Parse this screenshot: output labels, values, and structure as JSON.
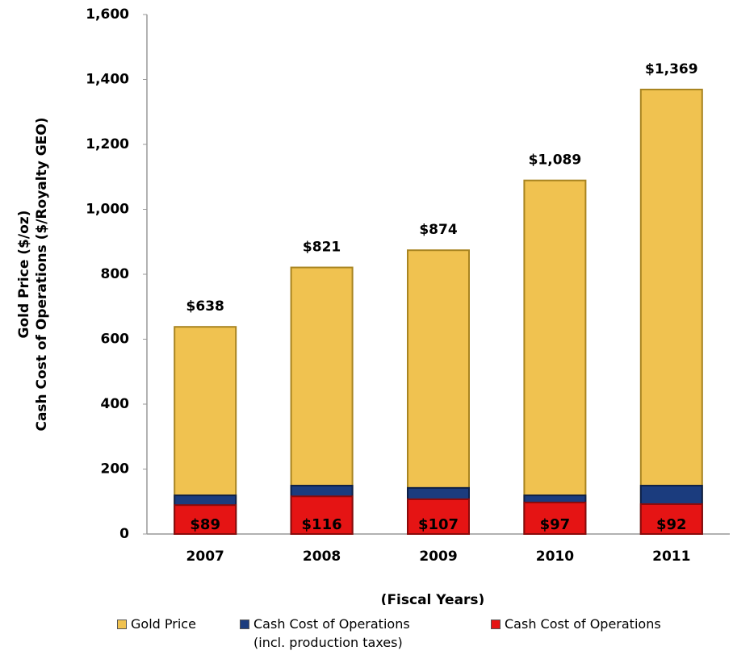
{
  "chart_data": {
    "type": "bar",
    "ylabel": [
      "Gold Price ($/oz)",
      "Cash Cost of Operations ($/Royalty GEO)"
    ],
    "xlabel": "(Fiscal Years)",
    "categories": [
      "2007",
      "2008",
      "2009",
      "2010",
      "2011"
    ],
    "overlay": true,
    "series": [
      {
        "name": "Gold Price",
        "color": "#f0c250",
        "values": [
          638,
          821,
          874,
          1089,
          1369
        ],
        "value_labels": [
          "$638",
          "$821",
          "$874",
          "$1,089",
          "$1,369"
        ]
      },
      {
        "name": "Cash Cost of Operations (incl. production taxes)",
        "color": "#1b3c7e",
        "values": [
          119,
          149,
          142,
          119,
          149
        ]
      },
      {
        "name": "Cash Cost of Operations",
        "color": "#e51414",
        "values": [
          89,
          116,
          107,
          97,
          92
        ],
        "value_labels": [
          "$89",
          "$116",
          "$107",
          "$97",
          "$92"
        ]
      }
    ],
    "ylim": [
      0,
      1600
    ],
    "yticks": [
      0,
      200,
      400,
      600,
      800,
      {
        "value": 1000,
        "label": "1,000"
      },
      {
        "value": 1200,
        "label": "1,200"
      },
      {
        "value": 1400,
        "label": "1,400"
      },
      {
        "value": 1600,
        "label": "1,600"
      }
    ],
    "grid": false
  }
}
